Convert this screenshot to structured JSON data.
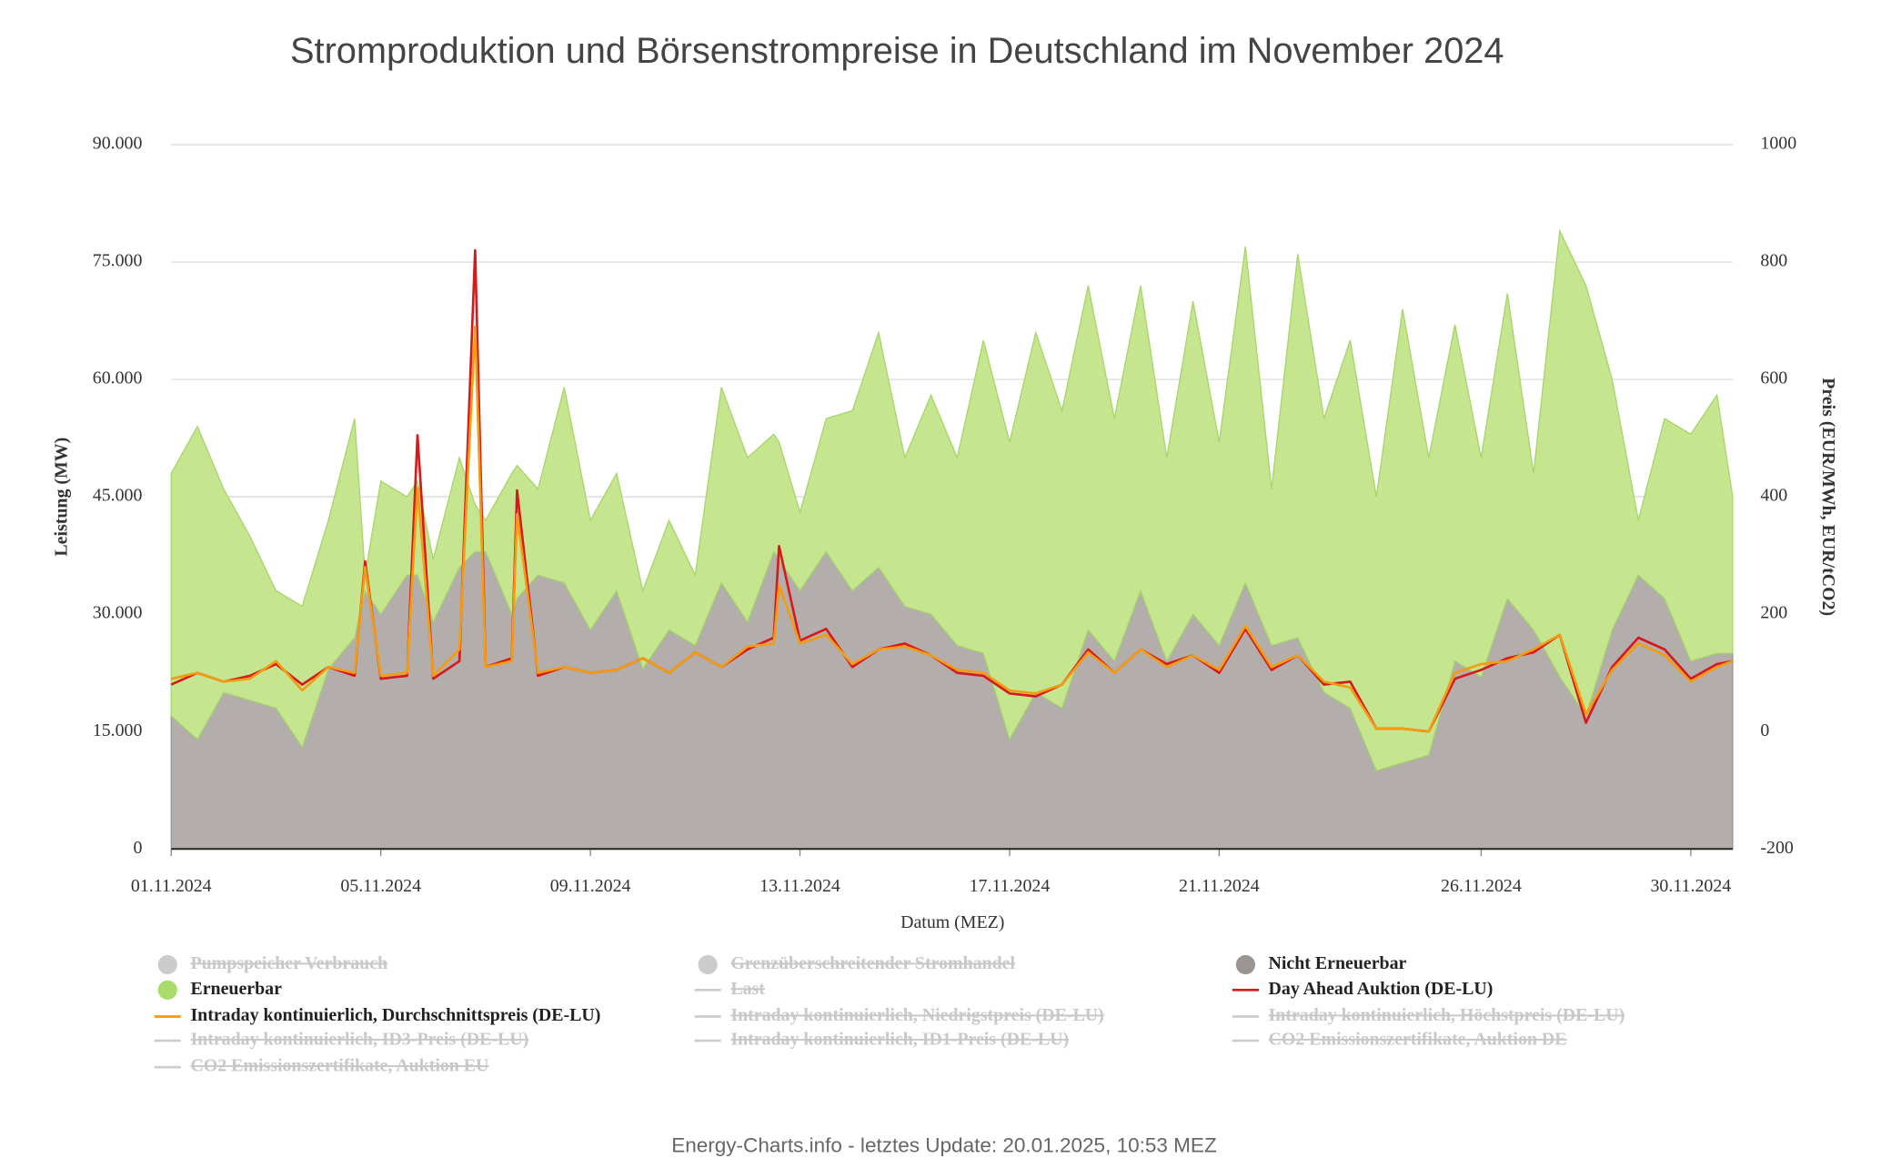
{
  "chart_data": {
    "type": "area",
    "title": "Stromproduktion und Börsenstrompreise in Deutschland im November 2024",
    "xlabel": "Datum (MEZ)",
    "ylabel": "Leistung (MW)",
    "y2label": "Preis (EUR/MWh, EUR/tCO2)",
    "footer": "Energy-Charts.info - letztes Update: 20.01.2025, 10:53 MEZ",
    "x": [
      0,
      0.5,
      1,
      1.5,
      2,
      2.5,
      3,
      3.5,
      3.7,
      4,
      4.5,
      4.7,
      5,
      5.5,
      5.8,
      6,
      6.5,
      6.6,
      7,
      7.5,
      8,
      8.5,
      9,
      9.5,
      10,
      10.5,
      11,
      11.5,
      11.6,
      12,
      12.5,
      13,
      13.5,
      14,
      14.5,
      15,
      15.5,
      16,
      16.5,
      17,
      17.5,
      18,
      18.5,
      19,
      19.5,
      20,
      20.5,
      21,
      21.5,
      22,
      22.5,
      23,
      23.5,
      24,
      24.5,
      25,
      25.5,
      26,
      26.5,
      27,
      27.5,
      28,
      28.5,
      29,
      29.5,
      29.8
    ],
    "xlim": [
      0,
      29.8
    ],
    "xticks": [
      {
        "value": 0,
        "label": "01.11.2024"
      },
      {
        "value": 4,
        "label": "05.11.2024"
      },
      {
        "value": 8,
        "label": "09.11.2024"
      },
      {
        "value": 12,
        "label": "13.11.2024"
      },
      {
        "value": 16,
        "label": "17.11.2024"
      },
      {
        "value": 20,
        "label": "21.11.2024"
      },
      {
        "value": 25,
        "label": "26.11.2024"
      },
      {
        "value": 29,
        "label": "30.11.2024"
      }
    ],
    "ylim": [
      0,
      90000
    ],
    "yticks": [
      0,
      {
        "value": 15000,
        "label": "15.000"
      },
      {
        "value": 30000,
        "label": "30.000"
      },
      {
        "value": 45000,
        "label": "45.000"
      },
      {
        "value": 60000,
        "label": "60.000"
      },
      {
        "value": 75000,
        "label": "75.000"
      },
      {
        "value": 90000,
        "label": "90.000"
      }
    ],
    "y2lim": [
      -200,
      1000
    ],
    "y2ticks": [
      -200,
      0,
      200,
      400,
      600,
      800,
      1000
    ],
    "grid": true,
    "series": [
      {
        "name": "Nicht Erneuerbar",
        "type": "area",
        "color": "#b3aeab",
        "values": [
          17000,
          14000,
          20000,
          19000,
          18000,
          13000,
          23000,
          27000,
          33000,
          30000,
          35000,
          35000,
          29000,
          36000,
          38000,
          38000,
          30000,
          32000,
          35000,
          34000,
          28000,
          33000,
          23000,
          28000,
          26000,
          34000,
          29000,
          38000,
          37000,
          33000,
          38000,
          33000,
          36000,
          31000,
          30000,
          26000,
          25000,
          14000,
          20000,
          18000,
          28000,
          24000,
          33000,
          24000,
          30000,
          26000,
          34000,
          26000,
          27000,
          20000,
          18000,
          10000,
          11000,
          12000,
          24000,
          22000,
          32000,
          28000,
          22000,
          17000,
          28000,
          35000,
          32000,
          24000,
          25000,
          25000
        ]
      },
      {
        "name": "Erneuerbar",
        "type": "area",
        "color": "#c5e68f",
        "values": [
          31000,
          40000,
          26000,
          21000,
          15000,
          18000,
          19000,
          28000,
          2000,
          17000,
          10000,
          12000,
          8000,
          14000,
          6000,
          4000,
          18000,
          17000,
          11000,
          25000,
          14000,
          15000,
          10000,
          14000,
          9000,
          25000,
          21000,
          15000,
          15000,
          10000,
          17000,
          23000,
          30000,
          19000,
          28000,
          24000,
          40000,
          38000,
          46000,
          38000,
          44000,
          31000,
          39000,
          26000,
          40000,
          26000,
          43000,
          20000,
          49000,
          35000,
          47000,
          35000,
          58000,
          38000,
          43000,
          28000,
          39000,
          20000,
          57000,
          55000,
          32000,
          7000,
          23000,
          29000,
          33000,
          20000
        ]
      },
      {
        "name": "Day Ahead Auktion (DE-LU)",
        "type": "line",
        "axis": "y2",
        "color": "#d7191c",
        "values": [
          80,
          100,
          85,
          95,
          115,
          80,
          110,
          95,
          290,
          90,
          95,
          505,
          90,
          120,
          820,
          110,
          125,
          411,
          95,
          110,
          100,
          105,
          125,
          100,
          135,
          110,
          140,
          160,
          316,
          155,
          175,
          110,
          140,
          150,
          130,
          100,
          95,
          65,
          60,
          80,
          140,
          100,
          140,
          115,
          130,
          100,
          175,
          105,
          130,
          80,
          85,
          5,
          5,
          0,
          90,
          105,
          125,
          135,
          165,
          15,
          110,
          160,
          140,
          90,
          115,
          120
        ]
      },
      {
        "name": "Intraday kontinuierlich, Durchschnittspreis (DE-LU)",
        "type": "line",
        "axis": "y2",
        "color": "#f39c12",
        "values": [
          90,
          100,
          85,
          90,
          120,
          70,
          110,
          100,
          280,
          95,
          100,
          415,
          95,
          140,
          690,
          110,
          120,
          370,
          100,
          110,
          100,
          105,
          125,
          100,
          135,
          110,
          145,
          150,
          250,
          150,
          165,
          115,
          140,
          145,
          130,
          105,
          100,
          70,
          65,
          80,
          135,
          100,
          140,
          110,
          130,
          105,
          180,
          110,
          130,
          85,
          75,
          5,
          5,
          0,
          100,
          115,
          120,
          140,
          165,
          30,
          105,
          150,
          130,
          85,
          110,
          120
        ]
      }
    ],
    "legend_hidden": [
      {
        "name": "Pumpspeicher Verbrauch",
        "symbol": "circle"
      },
      {
        "name": "Grenzüberschreitender Stromhandel",
        "symbol": "circle"
      },
      {
        "name": "Last",
        "symbol": "line"
      },
      {
        "name": "Intraday kontinuierlich, Niedrigstpreis (DE-LU)",
        "symbol": "line"
      },
      {
        "name": "Intraday kontinuierlich, Höchstpreis (DE-LU)",
        "symbol": "line"
      },
      {
        "name": "Intraday kontinuierlich, ID3-Preis (DE-LU)",
        "symbol": "line"
      },
      {
        "name": "Intraday kontinuierlich, ID1-Preis (DE-LU)",
        "symbol": "line"
      },
      {
        "name": "CO2 Emissionszertifikate, Auktion DE",
        "symbol": "line"
      },
      {
        "name": "CO2 Emissionszertifikate, Auktion EU",
        "symbol": "line"
      }
    ]
  }
}
